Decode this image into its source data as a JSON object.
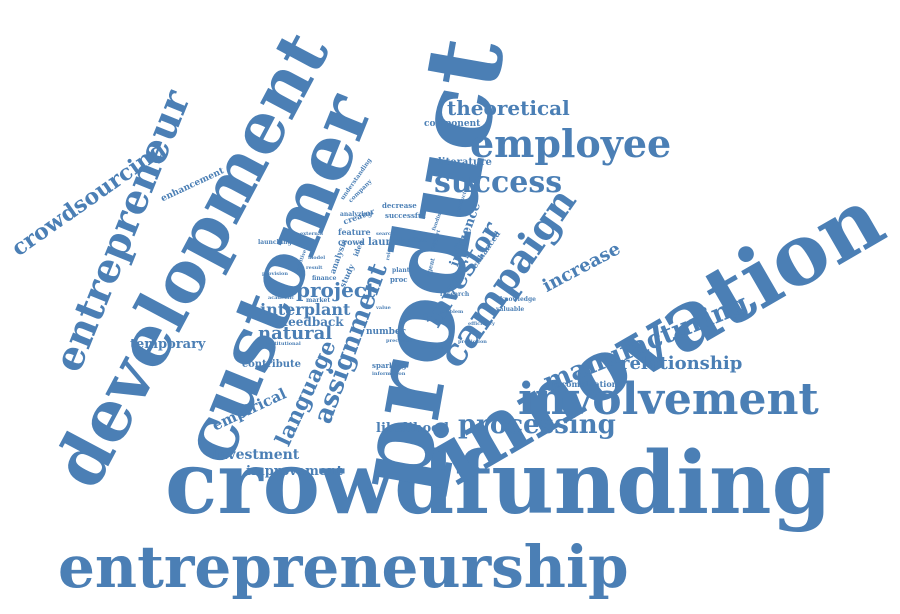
{
  "color": "#4b7fb5",
  "words": [
    {
      "text": "crowdfunding",
      "weight": 1.0
    },
    {
      "text": "product",
      "weight": 0.98
    },
    {
      "text": "innovation",
      "weight": 0.93
    },
    {
      "text": "development",
      "weight": 0.9
    },
    {
      "text": "customer",
      "weight": 0.88
    },
    {
      "text": "entrepreneurship",
      "weight": 0.8
    },
    {
      "text": "involvement",
      "weight": 0.65
    },
    {
      "text": "entrepreneur",
      "weight": 0.62
    },
    {
      "text": "campaign",
      "weight": 0.58
    },
    {
      "text": "manufacturing",
      "weight": 0.5
    },
    {
      "text": "employee",
      "weight": 0.5
    },
    {
      "text": "success",
      "weight": 0.42
    },
    {
      "text": "crowdsourcing",
      "weight": 0.4
    },
    {
      "text": "processing",
      "weight": 0.4
    },
    {
      "text": "investor",
      "weight": 0.38
    },
    {
      "text": "assignment",
      "weight": 0.38
    },
    {
      "text": "language",
      "weight": 0.34
    },
    {
      "text": "theoretical",
      "weight": 0.32
    },
    {
      "text": "relationship",
      "weight": 0.3
    },
    {
      "text": "increase",
      "weight": 0.3
    },
    {
      "text": "project",
      "weight": 0.3
    },
    {
      "text": "natural",
      "weight": 0.28
    },
    {
      "text": "interplant",
      "weight": 0.27
    },
    {
      "text": "empirical",
      "weight": 0.24
    },
    {
      "text": "influence",
      "weight": 0.22
    },
    {
      "text": "investment",
      "weight": 0.2
    },
    {
      "text": "improvement",
      "weight": 0.2
    },
    {
      "text": "temporary",
      "weight": 0.2
    },
    {
      "text": "likelihood",
      "weight": 0.2
    },
    {
      "text": "feedback",
      "weight": 0.2
    },
    {
      "text": "contribute",
      "weight": 0.16
    },
    {
      "text": "launch",
      "weight": 0.16
    },
    {
      "text": "literature",
      "weight": 0.16
    },
    {
      "text": "enhancement",
      "weight": 0.14
    },
    {
      "text": "number",
      "weight": 0.14
    },
    {
      "text": "component",
      "weight": 0.13
    },
    {
      "text": "recombination",
      "weight": 0.13
    },
    {
      "text": "feature",
      "weight": 0.12
    },
    {
      "text": "crowd",
      "weight": 0.12
    },
    {
      "text": "creator",
      "weight": 0.12
    },
    {
      "text": "analysis",
      "weight": 0.12
    },
    {
      "text": "enhanced",
      "weight": 0.12
    },
    {
      "text": "study",
      "weight": 0.12
    },
    {
      "text": "successful",
      "weight": 0.11
    },
    {
      "text": "decrease",
      "weight": 0.11
    },
    {
      "text": "sparking",
      "weight": 0.1
    },
    {
      "text": "knowledge",
      "weight": 0.1
    },
    {
      "text": "valuable",
      "weight": 0.1
    },
    {
      "text": "research",
      "weight": 0.1
    },
    {
      "text": "agent",
      "weight": 0.1
    },
    {
      "text": "plant",
      "weight": 0.1
    },
    {
      "text": "proc",
      "weight": 0.1
    },
    {
      "text": "effect",
      "weight": 0.1
    },
    {
      "text": "company",
      "weight": 0.1
    },
    {
      "text": "analyzing",
      "weight": 0.1
    },
    {
      "text": "understanding",
      "weight": 0.1
    },
    {
      "text": "idea",
      "weight": 0.1
    },
    {
      "text": "market",
      "weight": 0.09
    },
    {
      "text": "finance",
      "weight": 0.09
    },
    {
      "text": "launching",
      "weight": 0.09
    },
    {
      "text": "provision",
      "weight": 0.08
    },
    {
      "text": "academic",
      "weight": 0.08
    },
    {
      "text": "institutional",
      "weight": 0.08
    },
    {
      "text": "information",
      "weight": 0.08
    },
    {
      "text": "prediction",
      "weight": 0.08
    },
    {
      "text": "question",
      "weight": 0.08
    },
    {
      "text": "value",
      "weight": 0.08
    },
    {
      "text": "efficiency",
      "weight": 0.08
    },
    {
      "text": "problem",
      "weight": 0.08
    },
    {
      "text": "result",
      "weight": 0.08
    },
    {
      "text": "positive",
      "weight": 0.08
    },
    {
      "text": "model",
      "weight": 0.08
    },
    {
      "text": "support",
      "weight": 0.08
    },
    {
      "text": "funding",
      "weight": 0.08
    },
    {
      "text": "search",
      "weight": 0.08
    },
    {
      "text": "precision",
      "weight": 0.08
    },
    {
      "text": "production",
      "weight": 0.08
    },
    {
      "text": "external",
      "weight": 0.08
    },
    {
      "text": "role",
      "weight": 0.08
    }
  ]
}
